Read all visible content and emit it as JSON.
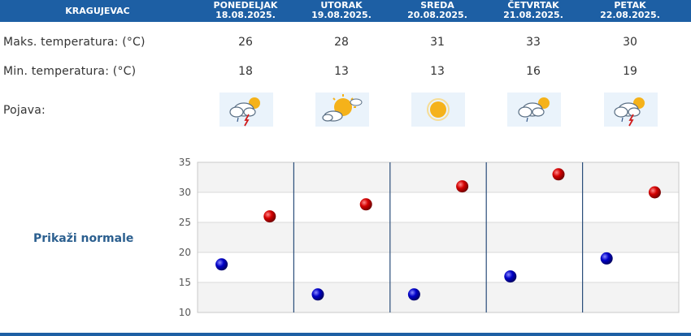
{
  "header": {
    "city": "KRAGUJEVAC",
    "days": [
      {
        "name": "PONEDELJAK",
        "date": "18.08.2025."
      },
      {
        "name": "UTORAK",
        "date": "19.08.2025."
      },
      {
        "name": "SREDA",
        "date": "20.08.2025."
      },
      {
        "name": "ČETVRTAK",
        "date": "21.08.2025."
      },
      {
        "name": "PETAK",
        "date": "22.08.2025."
      }
    ]
  },
  "rows": {
    "max_label": "Maks. temperatura: (°C)",
    "min_label": "Min. temperatura: (°C)",
    "phenomenon_label": "Pojava:",
    "max_values": [
      "26",
      "28",
      "31",
      "33",
      "30"
    ],
    "min_values": [
      "18",
      "13",
      "13",
      "16",
      "19"
    ],
    "icons": [
      "thunderstorm-icon",
      "partly-cloudy-icon",
      "sunny-icon",
      "cloudy-showers-icon",
      "thunderstorm-icon"
    ]
  },
  "normals_button": "Prikaži normale",
  "colors": {
    "header_bg": "#1d5fa4",
    "max_marker": "#cc0000",
    "min_marker": "#0a0aa8",
    "grid_band": "#f3f3f3"
  },
  "chart_data": {
    "type": "scatter",
    "categories": [
      "PONEDELJAK",
      "UTORAK",
      "SREDA",
      "ČETVRTAK",
      "PETAK"
    ],
    "series": [
      {
        "name": "",
        "values": [
          26,
          28,
          31,
          33,
          30
        ]
      },
      {
        "name": "",
        "values": [
          18,
          13,
          13,
          16,
          19
        ]
      }
    ],
    "ylim": [
      10,
      35
    ],
    "yticks": [
      "10",
      "15",
      "20",
      "25",
      "30",
      "35"
    ],
    "grid": true,
    "legend": "none"
  }
}
